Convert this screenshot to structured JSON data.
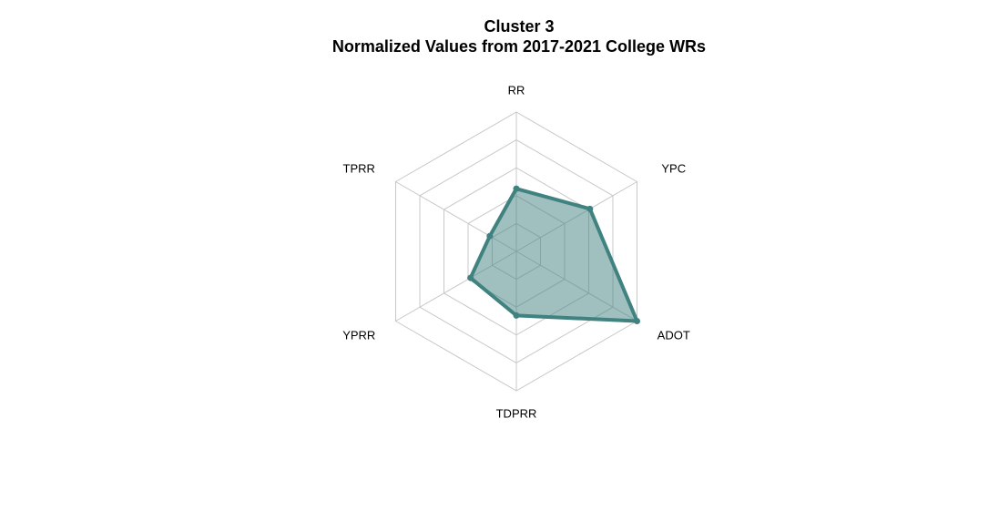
{
  "chart_data": {
    "type": "radar",
    "title": "Cluster 3",
    "subtitle": "Normalized Values from 2017-2021 College WRs",
    "axes": [
      "RR",
      "YPC",
      "ADOT",
      "TDPRR",
      "YPRR",
      "TPRR"
    ],
    "range": [
      0,
      1
    ],
    "grid_levels": 5,
    "series": [
      {
        "name": "",
        "values": [
          0.45,
          0.61,
          1.0,
          0.46,
          0.38,
          0.22
        ]
      }
    ],
    "colors": {
      "series_line": "#3f8280",
      "series_fill": "#3f8280",
      "grid": "#c8c8c8"
    }
  }
}
